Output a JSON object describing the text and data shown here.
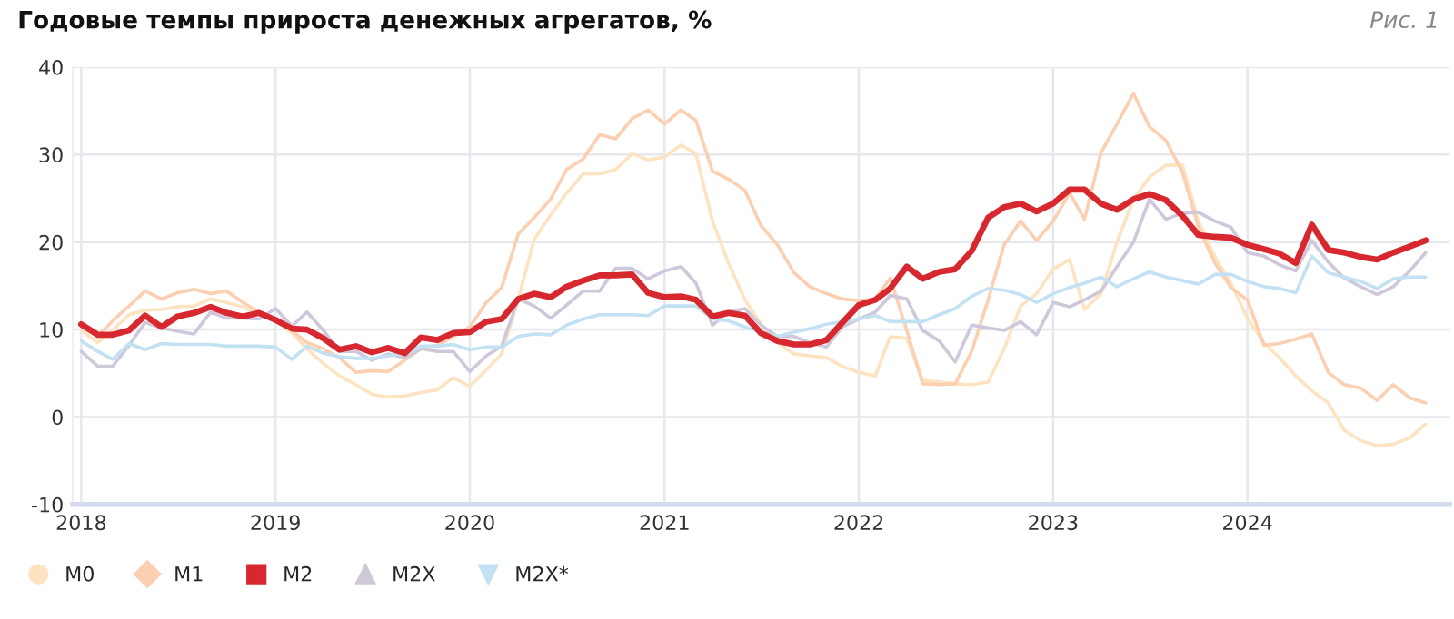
{
  "chart_data": {
    "type": "line",
    "title": "Годовые темпы прироста денежных агрегатов, %",
    "annotations": [
      "Рис. 1"
    ],
    "x": [
      "2018-01",
      "2018-02",
      "2018-03",
      "2018-04",
      "2018-05",
      "2018-06",
      "2018-07",
      "2018-08",
      "2018-09",
      "2018-10",
      "2018-11",
      "2018-12",
      "2019-01",
      "2019-02",
      "2019-03",
      "2019-04",
      "2019-05",
      "2019-06",
      "2019-07",
      "2019-08",
      "2019-09",
      "2019-10",
      "2019-11",
      "2019-12",
      "2020-01",
      "2020-02",
      "2020-03",
      "2020-04",
      "2020-05",
      "2020-06",
      "2020-07",
      "2020-08",
      "2020-09",
      "2020-10",
      "2020-11",
      "2020-12",
      "2021-01",
      "2021-02",
      "2021-03",
      "2021-04",
      "2021-05",
      "2021-06",
      "2021-07",
      "2021-08",
      "2021-09",
      "2021-10",
      "2021-11",
      "2021-12",
      "2022-01",
      "2022-02",
      "2022-03",
      "2022-04",
      "2022-05",
      "2022-06",
      "2022-07",
      "2022-08",
      "2022-09",
      "2022-10",
      "2022-11",
      "2022-12",
      "2023-01",
      "2023-02",
      "2023-03",
      "2023-04",
      "2023-05",
      "2023-06",
      "2023-07",
      "2023-08",
      "2023-09",
      "2023-10",
      "2023-11",
      "2023-12",
      "2024-01",
      "2024-02",
      "2024-03",
      "2024-04",
      "2024-05",
      "2024-06",
      "2024-07",
      "2024-08",
      "2024-09",
      "2024-10",
      "2024-11",
      "2024-12"
    ],
    "series": [
      {
        "name": "M0",
        "color": "#fde3c0",
        "values": [
          9.9,
          8.5,
          9.9,
          11.7,
          12.2,
          12.3,
          12.6,
          12.7,
          13.5,
          13.1,
          12.6,
          11.7,
          11.0,
          9.6,
          7.8,
          6.1,
          4.7,
          3.7,
          2.6,
          2.3,
          2.4,
          2.8,
          3.1,
          4.5,
          3.5,
          5.4,
          7.2,
          13.4,
          20.3,
          23.1,
          25.6,
          27.8,
          27.8,
          28.3,
          30.1,
          29.4,
          29.7,
          31.1,
          30.1,
          22.4,
          17.6,
          13.4,
          10.6,
          8.5,
          7.2,
          7.0,
          6.8,
          5.8,
          5.1,
          4.7,
          9.2,
          9.0,
          4.2,
          4.0,
          3.8,
          3.7,
          4.0,
          7.8,
          12.7,
          14.1,
          16.9,
          18.0,
          12.3,
          14.1,
          20.0,
          24.9,
          27.4,
          28.8,
          28.8,
          22.4,
          18.3,
          15.3,
          11.3,
          8.5,
          6.8,
          4.7,
          3.0,
          1.6,
          -1.5,
          -2.7,
          -3.3,
          -3.1,
          -2.4,
          -0.8
        ]
      },
      {
        "name": "M1",
        "color": "#fccfb0",
        "values": [
          10.6,
          9.2,
          11.0,
          12.7,
          14.4,
          13.5,
          14.2,
          14.6,
          14.1,
          14.4,
          13.1,
          12.0,
          11.3,
          9.9,
          8.5,
          7.8,
          6.8,
          5.1,
          5.3,
          5.2,
          6.5,
          7.8,
          8.2,
          9.2,
          10.3,
          13.1,
          14.8,
          20.9,
          22.8,
          24.9,
          28.3,
          29.5,
          32.3,
          31.8,
          34.1,
          35.1,
          33.5,
          35.1,
          33.9,
          28.1,
          27.2,
          25.9,
          21.9,
          19.7,
          16.5,
          14.9,
          14.1,
          13.5,
          13.3,
          13.5,
          15.9,
          9.9,
          3.8,
          3.7,
          3.8,
          7.5,
          13.4,
          19.7,
          22.4,
          20.2,
          22.4,
          25.6,
          22.6,
          30.2,
          33.5,
          37.0,
          33.2,
          31.6,
          28.0,
          21.7,
          17.6,
          14.8,
          13.4,
          8.2,
          8.4,
          8.9,
          9.5,
          5.1,
          3.7,
          3.3,
          1.9,
          3.7,
          2.2,
          1.6
        ]
      },
      {
        "name": "M2",
        "color": "#d7282f",
        "values": [
          10.6,
          9.4,
          9.4,
          9.9,
          11.6,
          10.3,
          11.5,
          11.9,
          12.6,
          11.9,
          11.5,
          11.9,
          11.1,
          10.1,
          10.0,
          9.0,
          7.7,
          8.1,
          7.4,
          7.9,
          7.3,
          9.1,
          8.8,
          9.6,
          9.7,
          10.9,
          11.2,
          13.5,
          14.1,
          13.7,
          14.9,
          15.6,
          16.2,
          16.2,
          16.3,
          14.2,
          13.7,
          13.8,
          13.4,
          11.5,
          11.9,
          11.6,
          9.6,
          8.7,
          8.3,
          8.3,
          8.8,
          10.8,
          12.8,
          13.4,
          14.7,
          17.2,
          15.8,
          16.6,
          16.9,
          19.0,
          22.8,
          24.0,
          24.4,
          23.5,
          24.4,
          26.0,
          26.0,
          24.4,
          23.7,
          24.9,
          25.5,
          24.8,
          23.0,
          20.8,
          20.6,
          20.5,
          19.7,
          19.2,
          18.7,
          17.6,
          22.0,
          19.1,
          18.8,
          18.3,
          18.0,
          18.8,
          19.5,
          20.2
        ]
      },
      {
        "name": "M2X",
        "color": "#cfc8da",
        "values": [
          7.5,
          5.8,
          5.8,
          8.2,
          10.8,
          10.2,
          9.8,
          9.5,
          12.0,
          11.3,
          11.3,
          11.2,
          12.4,
          10.4,
          12.0,
          9.9,
          7.5,
          7.5,
          6.5,
          7.2,
          6.8,
          7.8,
          7.5,
          7.5,
          5.2,
          7.0,
          8.1,
          13.5,
          12.7,
          11.3,
          12.8,
          14.4,
          14.4,
          17.0,
          17.0,
          15.8,
          16.7,
          17.2,
          15.3,
          10.5,
          12.0,
          12.4,
          10.5,
          9.2,
          9.2,
          8.5,
          8.0,
          10.3,
          11.2,
          12.0,
          13.9,
          13.5,
          9.9,
          8.7,
          6.3,
          10.5,
          10.2,
          9.9,
          10.9,
          9.4,
          13.1,
          12.6,
          13.4,
          14.4,
          17.2,
          20.0,
          24.9,
          22.6,
          23.3,
          23.4,
          22.4,
          21.7,
          18.8,
          18.4,
          17.4,
          16.7,
          20.2,
          17.7,
          15.9,
          14.9,
          14.0,
          14.9,
          16.7,
          18.8
        ]
      },
      {
        "name": "M2X*",
        "color": "#c2e1f3",
        "values": [
          8.7,
          7.5,
          6.6,
          8.4,
          7.7,
          8.4,
          8.3,
          8.3,
          8.3,
          8.1,
          8.1,
          8.1,
          8.0,
          6.6,
          8.1,
          7.3,
          6.9,
          6.7,
          6.7,
          7.0,
          7.2,
          8.1,
          8.1,
          8.3,
          7.7,
          8.0,
          8.0,
          9.2,
          9.5,
          9.4,
          10.5,
          11.2,
          11.7,
          11.7,
          11.7,
          11.6,
          12.7,
          12.7,
          12.7,
          11.2,
          11.0,
          10.3,
          9.7,
          9.2,
          9.7,
          10.1,
          10.6,
          10.9,
          11.2,
          11.6,
          10.9,
          10.9,
          10.9,
          11.7,
          12.4,
          13.8,
          14.7,
          14.5,
          14.0,
          13.1,
          14.1,
          14.8,
          15.3,
          16.0,
          14.9,
          15.8,
          16.6,
          16.0,
          15.6,
          15.2,
          16.3,
          16.3,
          15.5,
          14.9,
          14.7,
          14.2,
          18.4,
          16.5,
          16.0,
          15.5,
          14.7,
          15.8,
          16.0,
          16.0
        ]
      }
    ],
    "xlim": [
      "2017-12-16",
      "2025-01-15"
    ],
    "xticks": [
      {
        "value": "2018-01-01",
        "label": "2018"
      },
      {
        "value": "2019-01-01",
        "label": "2019"
      },
      {
        "value": "2020-01-01",
        "label": "2020"
      },
      {
        "value": "2021-01-01",
        "label": "2021"
      },
      {
        "value": "2022-01-01",
        "label": "2022"
      },
      {
        "value": "2023-01-01",
        "label": "2023"
      },
      {
        "value": "2024-01-01",
        "label": "2024"
      }
    ],
    "ylim": [
      -10,
      40
    ],
    "yticks": [
      -10,
      0,
      10,
      20,
      30,
      40
    ],
    "grid": true,
    "legend": "bottom left"
  }
}
